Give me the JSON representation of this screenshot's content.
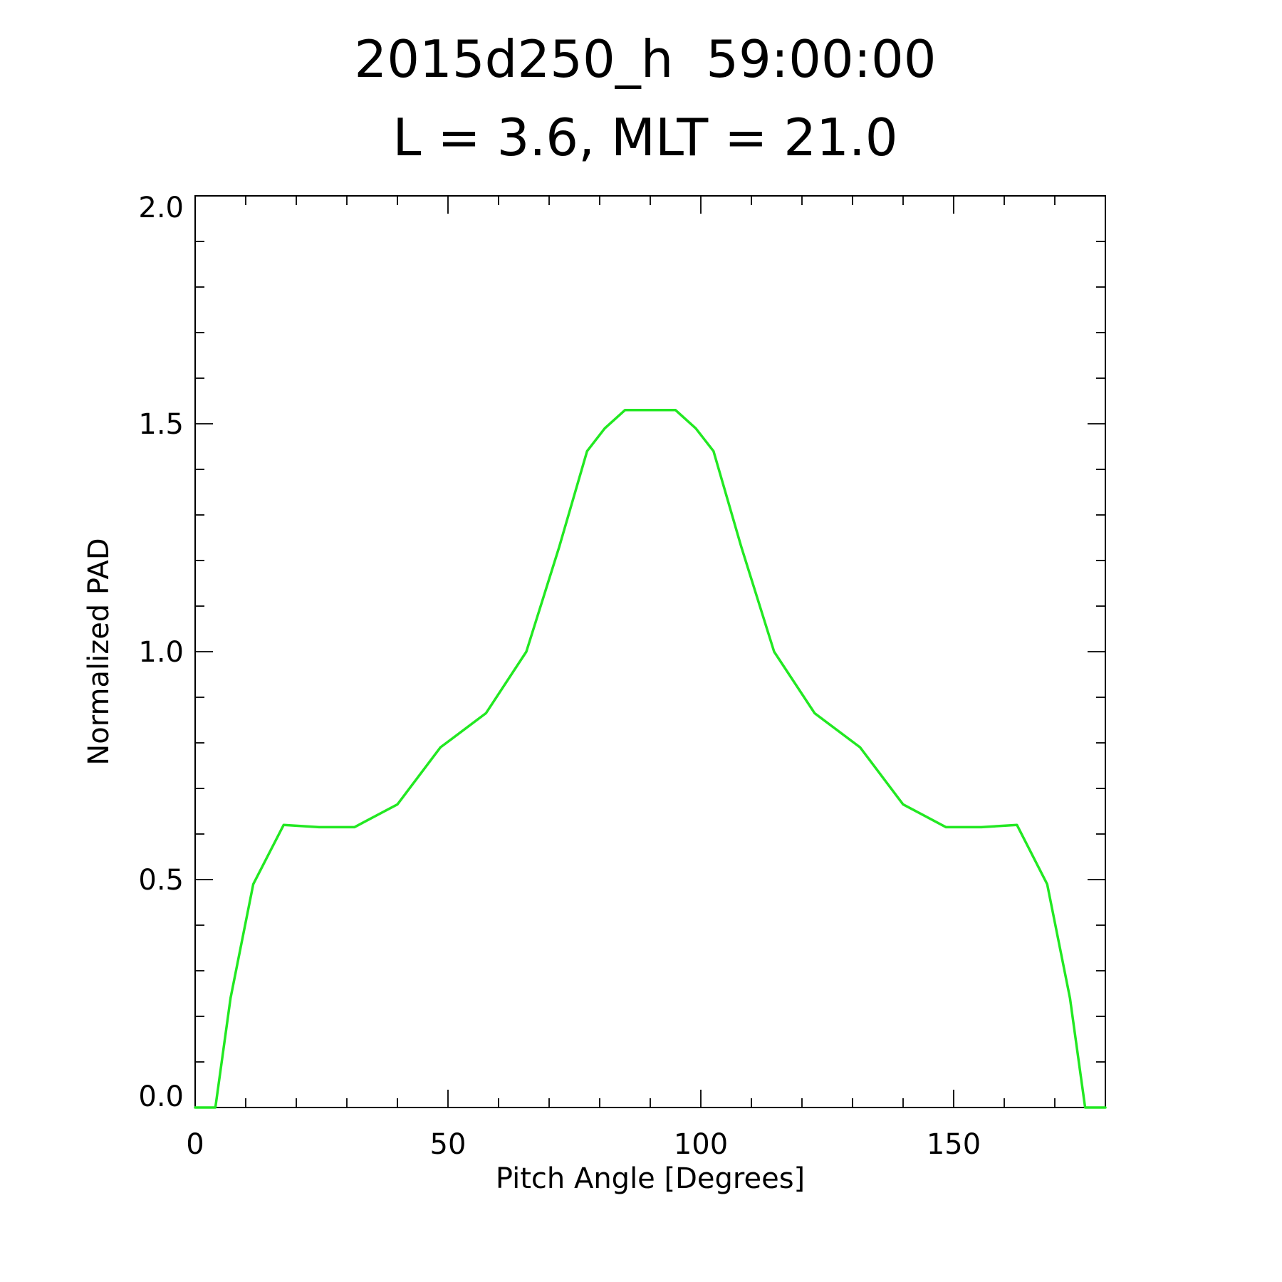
{
  "chart_data": {
    "type": "line",
    "title": "2015d250_h  59:00:00",
    "subtitle": "L = 3.6, MLT = 21.0",
    "xlabel": "Pitch Angle [Degrees]",
    "ylabel": "Normalized PAD",
    "xlim": [
      0,
      180
    ],
    "ylim": [
      0,
      2.0
    ],
    "xticks": [
      0,
      50,
      100,
      150
    ],
    "xtick_labels": [
      "0",
      "50",
      "100",
      "150"
    ],
    "yticks": [
      0,
      0.5,
      1.0,
      1.5,
      2.0
    ],
    "ytick_labels": [
      "0.0",
      "0.5",
      "1.0",
      "1.5",
      "2.0"
    ],
    "x_minor_ticks": [
      10,
      20,
      30,
      40,
      60,
      70,
      80,
      90,
      110,
      120,
      130,
      140,
      160,
      170
    ],
    "y_minor_ticks": [
      0.1,
      0.2,
      0.3,
      0.4,
      0.6,
      0.7,
      0.8,
      0.9,
      1.1,
      1.2,
      1.3,
      1.4,
      1.6,
      1.7,
      1.8,
      1.9
    ],
    "grid": false,
    "series": [
      {
        "color": "#22e822",
        "x": [
          0,
          4,
          7,
          11.5,
          17.5,
          24.5,
          31.5,
          40,
          48.5,
          57.5,
          65.5,
          72,
          77.5,
          81,
          85,
          90,
          95,
          99,
          102.5,
          108,
          114.5,
          122.5,
          131.5,
          140,
          148.5,
          155.5,
          162.5,
          168.5,
          173,
          176,
          180
        ],
        "y": [
          0,
          0,
          0.24,
          0.49,
          0.62,
          0.615,
          0.615,
          0.665,
          0.79,
          0.865,
          1.0,
          1.23,
          1.44,
          1.49,
          1.53,
          1.53,
          1.53,
          1.49,
          1.44,
          1.23,
          1.0,
          0.865,
          0.79,
          0.665,
          0.615,
          0.615,
          0.62,
          0.49,
          0.24,
          0,
          0
        ]
      }
    ]
  }
}
